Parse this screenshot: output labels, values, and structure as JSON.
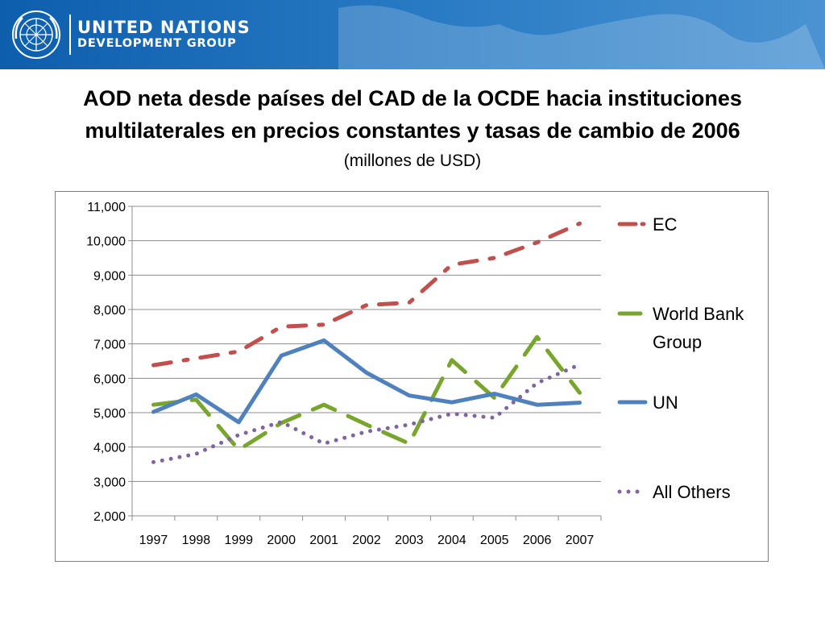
{
  "header": {
    "org_line1": "UNITED NATIONS",
    "org_line2": "DEVELOPMENT GROUP",
    "logo_icon": "un-emblem-icon"
  },
  "chart_data": {
    "type": "line",
    "title": "AOD neta desde países del CAD de la OCDE hacia instituciones multilaterales en precios constantes y tasas de cambio de 2006",
    "subtitle": "(millones de USD)",
    "xlabel": "",
    "ylabel": "",
    "categories": [
      "1997",
      "1998",
      "1999",
      "2000",
      "2001",
      "2002",
      "2003",
      "2004",
      "2005",
      "2006",
      "2007"
    ],
    "ylim": [
      2000,
      11000
    ],
    "yticks": [
      "2,000",
      "3,000",
      "4,000",
      "5,000",
      "6,000",
      "7,000",
      "8,000",
      "9,000",
      "10,000",
      "11,000"
    ],
    "grid": true,
    "legend_position": "right",
    "series": [
      {
        "name": "EC",
        "color": "#c0504d",
        "style": "dash-dot",
        "values": [
          6380,
          6580,
          6780,
          7500,
          7560,
          8130,
          8200,
          9300,
          9500,
          9950,
          10500
        ]
      },
      {
        "name": "World Bank Group",
        "color": "#77a52e",
        "style": "long-dash",
        "values": [
          5230,
          5380,
          3920,
          4700,
          5230,
          4650,
          4100,
          6530,
          5430,
          7200,
          5580
        ]
      },
      {
        "name": "UN",
        "color": "#4f81bd",
        "style": "solid",
        "values": [
          5020,
          5530,
          4720,
          6660,
          7100,
          6160,
          5500,
          5300,
          5550,
          5230,
          5290
        ]
      },
      {
        "name": "All Others",
        "color": "#8064a2",
        "style": "dotted",
        "values": [
          3560,
          3800,
          4350,
          4730,
          4100,
          4450,
          4650,
          4970,
          4850,
          5860,
          6400
        ]
      }
    ]
  }
}
